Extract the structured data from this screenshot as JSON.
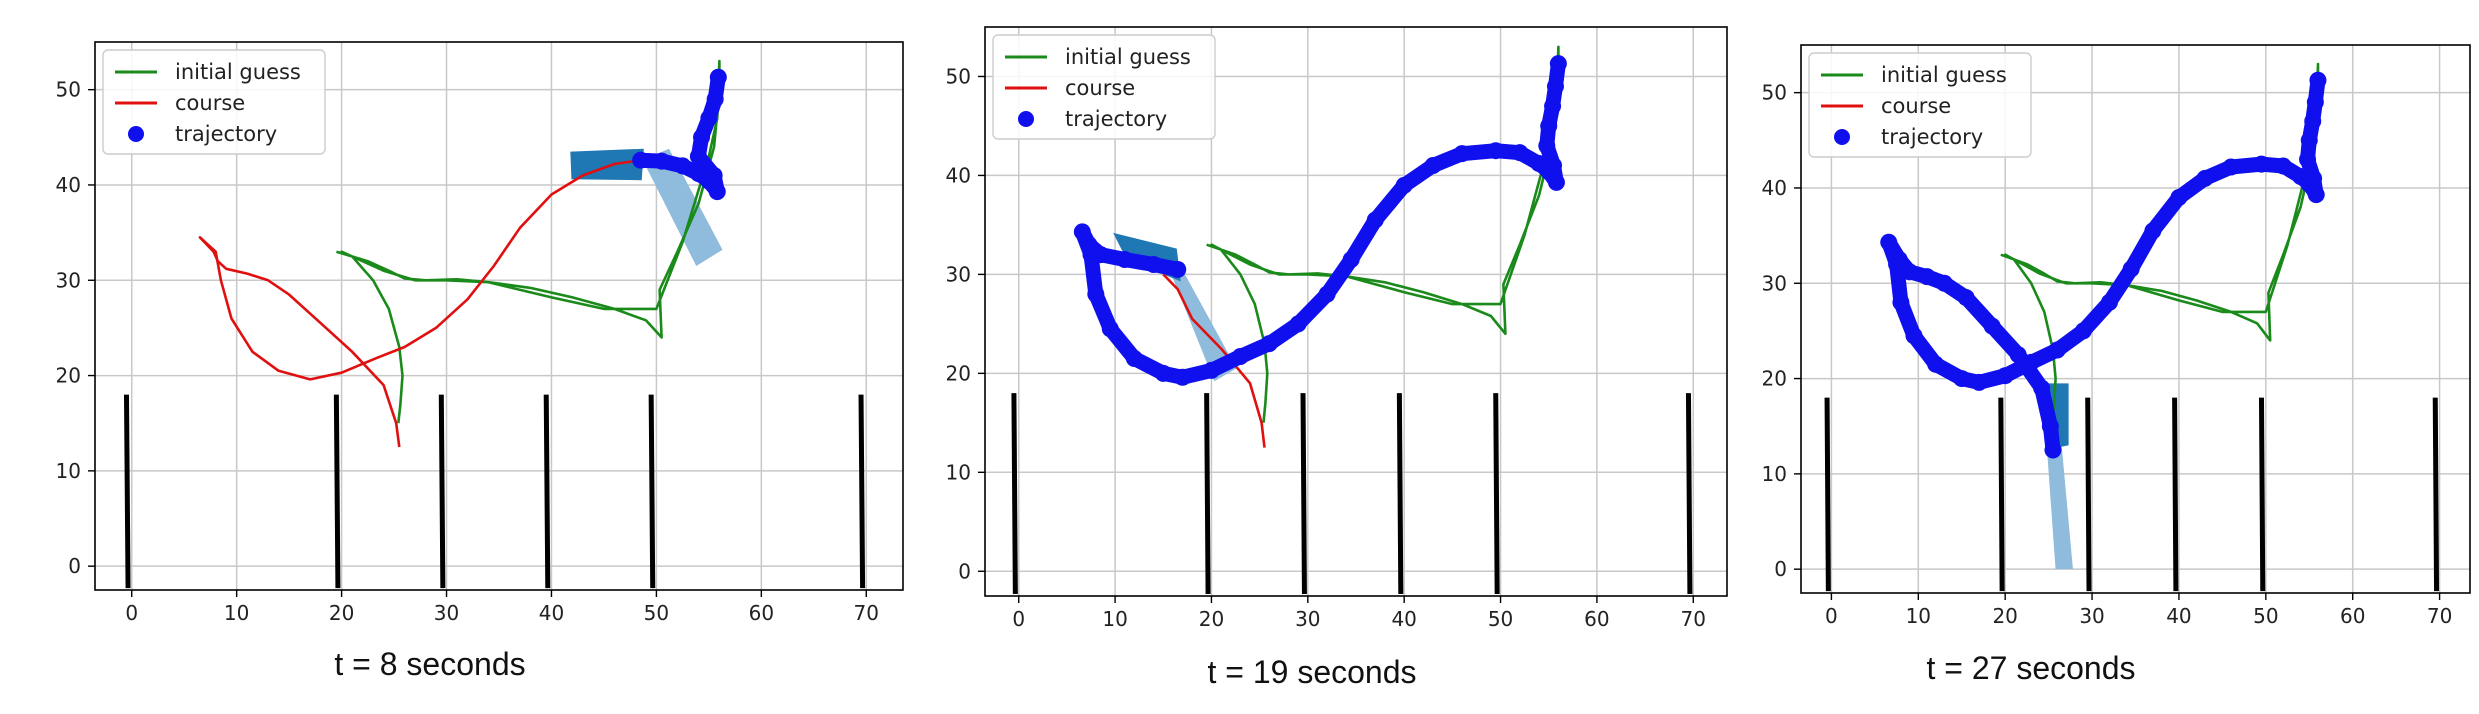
{
  "legend": {
    "initial_guess": "initial guess",
    "course": "course",
    "trajectory": "trajectory"
  },
  "colors": {
    "initial_guess": "#1a8a1a",
    "course": "#e01010",
    "trajectory": "#1010ee",
    "vehicle_dark": "#1f77b4",
    "vehicle_light": "#8fbcdc",
    "obstacles": "#000000",
    "grid": "#c8c8c8"
  },
  "chart_data": [
    {
      "type": "line",
      "caption": "t =  8 seconds",
      "xticks": [
        0,
        10,
        20,
        30,
        40,
        50,
        60,
        70
      ],
      "yticks": [
        0,
        10,
        20,
        30,
        40,
        50
      ],
      "xlim": [
        -3.5,
        73.5
      ],
      "ylim": [
        -2.5,
        55
      ],
      "grid": true,
      "legend_position": "upper-left",
      "series": [
        {
          "name": "initial guess",
          "points": [
            [
              19.5,
              33
            ],
            [
              22.5,
              32
            ],
            [
              24.5,
              31
            ],
            [
              26,
              30.2
            ],
            [
              28,
              30
            ],
            [
              31,
              30.1
            ],
            [
              34,
              29.8
            ],
            [
              38,
              29.2
            ],
            [
              42,
              28.2
            ],
            [
              46,
              27
            ],
            [
              49,
              25.8
            ],
            [
              50.5,
              24
            ],
            [
              50.3,
              29
            ],
            [
              52,
              33
            ],
            [
              54,
              38
            ],
            [
              55.5,
              44
            ],
            [
              56,
              50
            ],
            [
              56,
              53
            ],
            [
              55.8,
              47
            ],
            [
              55,
              43
            ],
            [
              52.5,
              34
            ],
            [
              50,
              27
            ],
            [
              45,
              27
            ],
            [
              40,
              28.2
            ],
            [
              34,
              29.8
            ],
            [
              30,
              30
            ],
            [
              27,
              30
            ],
            [
              24,
              31
            ],
            [
              22,
              32
            ],
            [
              20,
              33
            ],
            [
              21,
              32.5
            ],
            [
              23,
              30
            ],
            [
              24.5,
              27
            ],
            [
              25.5,
              23
            ],
            [
              25.8,
              20
            ],
            [
              25.6,
              17
            ],
            [
              25.4,
              15
            ]
          ]
        },
        {
          "name": "course",
          "points": [
            [
              25.5,
              12.5
            ],
            [
              25.2,
              15
            ],
            [
              24,
              19
            ],
            [
              21,
              22.5
            ],
            [
              18,
              25.5
            ],
            [
              15,
              28.5
            ],
            [
              13,
              30
            ],
            [
              11,
              30.7
            ],
            [
              9,
              31.2
            ],
            [
              8.2,
              32
            ],
            [
              7.8,
              33
            ],
            [
              6.5,
              34.5
            ],
            [
              8,
              33
            ],
            [
              8.5,
              30
            ],
            [
              9.5,
              26
            ],
            [
              11.5,
              22.5
            ],
            [
              14,
              20.5
            ],
            [
              17,
              19.6
            ],
            [
              20,
              20.3
            ],
            [
              23,
              21.7
            ],
            [
              26,
              23
            ],
            [
              29,
              25
            ],
            [
              32,
              28
            ],
            [
              34.5,
              31.5
            ],
            [
              37,
              35.5
            ],
            [
              40,
              39
            ],
            [
              43,
              41
            ],
            [
              46,
              42.2
            ],
            [
              48.5,
              42.6
            ]
          ]
        },
        {
          "name": "trajectory",
          "points": [
            [
              48.5,
              42.6
            ],
            [
              50.5,
              42.5
            ],
            [
              52.5,
              42
            ],
            [
              54,
              41.2
            ],
            [
              55,
              40.4
            ],
            [
              55.8,
              39.3
            ],
            [
              55.5,
              41
            ],
            [
              54,
              43
            ],
            [
              54.3,
              45
            ],
            [
              55,
              47
            ],
            [
              55.6,
              49
            ],
            [
              55.9,
              51.3
            ]
          ]
        }
      ],
      "obstacle_x": [
        -0.5,
        19.5,
        29.5,
        39.5,
        49.5,
        69.5
      ]
    },
    {
      "type": "line",
      "caption": "t = 19 seconds",
      "xticks": [
        0,
        10,
        20,
        30,
        40,
        50,
        60,
        70
      ],
      "yticks": [
        0,
        10,
        20,
        30,
        40,
        50
      ],
      "xlim": [
        -3.5,
        73.5
      ],
      "ylim": [
        -2.5,
        55
      ],
      "grid": true,
      "legend_position": "upper-left",
      "series": [
        {
          "name": "initial guess",
          "points": [
            [
              19.5,
              33
            ],
            [
              22.5,
              32
            ],
            [
              24.5,
              31
            ],
            [
              26,
              30.2
            ],
            [
              28,
              30
            ],
            [
              31,
              30.1
            ],
            [
              34,
              29.8
            ],
            [
              38,
              29.2
            ],
            [
              42,
              28.2
            ],
            [
              46,
              27
            ],
            [
              49,
              25.8
            ],
            [
              50.5,
              24
            ],
            [
              50.3,
              29
            ],
            [
              52,
              33
            ],
            [
              54,
              38
            ],
            [
              55.5,
              44
            ],
            [
              56,
              50
            ],
            [
              56,
              53
            ],
            [
              55.8,
              47
            ],
            [
              55,
              43
            ],
            [
              52.5,
              34
            ],
            [
              50,
              27
            ],
            [
              45,
              27
            ],
            [
              40,
              28.2
            ],
            [
              34,
              29.8
            ],
            [
              30,
              30
            ],
            [
              27,
              30
            ],
            [
              24,
              31
            ],
            [
              22,
              32
            ],
            [
              20,
              33
            ],
            [
              21,
              32.5
            ],
            [
              23,
              30
            ],
            [
              24.5,
              27
            ],
            [
              25.5,
              23
            ],
            [
              25.8,
              20
            ],
            [
              25.6,
              17
            ],
            [
              25.4,
              15
            ]
          ]
        },
        {
          "name": "course",
          "points": [
            [
              25.5,
              12.5
            ],
            [
              25.2,
              15
            ],
            [
              24,
              19
            ],
            [
              21,
              22.5
            ],
            [
              18,
              25.5
            ],
            [
              16.5,
              28.5
            ],
            [
              15,
              30
            ]
          ]
        },
        {
          "name": "trajectory",
          "points": [
            [
              16.5,
              30.5
            ],
            [
              14,
              31
            ],
            [
              11,
              31.5
            ],
            [
              8.5,
              32
            ],
            [
              7.3,
              33
            ],
            [
              6.6,
              34.3
            ],
            [
              7.5,
              32
            ],
            [
              8,
              28
            ],
            [
              9.5,
              24.5
            ],
            [
              12,
              21.5
            ],
            [
              15,
              20
            ],
            [
              17,
              19.6
            ],
            [
              20,
              20.3
            ],
            [
              23,
              21.7
            ],
            [
              26,
              23
            ],
            [
              29,
              25
            ],
            [
              32,
              28
            ],
            [
              34.5,
              31.5
            ],
            [
              37,
              35.5
            ],
            [
              40,
              39
            ],
            [
              43,
              41
            ],
            [
              46,
              42.2
            ],
            [
              49.5,
              42.5
            ],
            [
              52,
              42.3
            ],
            [
              54,
              41.2
            ],
            [
              55,
              40.4
            ],
            [
              55.8,
              39.3
            ],
            [
              55.5,
              41
            ],
            [
              54.8,
              43
            ],
            [
              55,
              45
            ],
            [
              55.4,
              47
            ],
            [
              55.7,
              49
            ],
            [
              56,
              51.3
            ]
          ]
        }
      ],
      "obstacle_x": [
        -0.5,
        19.5,
        29.5,
        39.5,
        49.5,
        69.5
      ]
    },
    {
      "type": "line",
      "caption": "t = 27 seconds",
      "xticks": [
        0,
        10,
        20,
        30,
        40,
        50,
        60,
        70
      ],
      "yticks": [
        0,
        10,
        20,
        30,
        40,
        50
      ],
      "xlim": [
        -3.5,
        73.5
      ],
      "ylim": [
        -2.5,
        55
      ],
      "grid": true,
      "legend_position": "upper-left",
      "series": [
        {
          "name": "initial guess",
          "points": [
            [
              19.5,
              33
            ],
            [
              22.5,
              32
            ],
            [
              24.5,
              31
            ],
            [
              26,
              30.2
            ],
            [
              28,
              30
            ],
            [
              31,
              30.1
            ],
            [
              34,
              29.8
            ],
            [
              38,
              29.2
            ],
            [
              42,
              28.2
            ],
            [
              46,
              27
            ],
            [
              49,
              25.8
            ],
            [
              50.5,
              24
            ],
            [
              50.3,
              29
            ],
            [
              52,
              33
            ],
            [
              54,
              38
            ],
            [
              55.5,
              44
            ],
            [
              56,
              50
            ],
            [
              56,
              53
            ],
            [
              55.8,
              47
            ],
            [
              55,
              43
            ],
            [
              52.5,
              34
            ],
            [
              50,
              27
            ],
            [
              45,
              27
            ],
            [
              40,
              28.2
            ],
            [
              34,
              29.8
            ],
            [
              30,
              30
            ],
            [
              27,
              30
            ],
            [
              24,
              31
            ],
            [
              22,
              32
            ],
            [
              20,
              33
            ],
            [
              21,
              32.5
            ],
            [
              23,
              30
            ],
            [
              24.5,
              27
            ],
            [
              25.5,
              23
            ],
            [
              25.8,
              20
            ],
            [
              25.6,
              17
            ],
            [
              25.4,
              15
            ]
          ]
        },
        {
          "name": "course",
          "points": []
        },
        {
          "name": "trajectory",
          "points": [
            [
              25.5,
              12.5
            ],
            [
              25.2,
              15
            ],
            [
              24.2,
              19
            ],
            [
              21.5,
              22.5
            ],
            [
              18.5,
              25.5
            ],
            [
              15.5,
              28.5
            ],
            [
              13,
              30
            ],
            [
              11,
              30.7
            ],
            [
              9,
              31.2
            ],
            [
              7.8,
              32.5
            ],
            [
              6.6,
              34.3
            ],
            [
              7.5,
              32
            ],
            [
              8,
              28
            ],
            [
              9.5,
              24.5
            ],
            [
              12,
              21.5
            ],
            [
              15,
              20
            ],
            [
              17,
              19.6
            ],
            [
              20,
              20.3
            ],
            [
              23,
              21.7
            ],
            [
              26,
              23
            ],
            [
              29,
              25
            ],
            [
              32,
              28
            ],
            [
              34.5,
              31.5
            ],
            [
              37,
              35.5
            ],
            [
              40,
              39
            ],
            [
              43,
              41
            ],
            [
              46,
              42.2
            ],
            [
              49.5,
              42.5
            ],
            [
              52,
              42.3
            ],
            [
              54,
              41.2
            ],
            [
              55,
              40.4
            ],
            [
              55.8,
              39.3
            ],
            [
              55.5,
              41
            ],
            [
              54.8,
              43
            ],
            [
              55,
              45
            ],
            [
              55.4,
              47
            ],
            [
              55.7,
              49
            ],
            [
              56,
              51.3
            ]
          ]
        }
      ],
      "obstacle_x": [
        -0.5,
        19.5,
        29.5,
        39.5,
        49.5,
        69.5
      ]
    }
  ]
}
